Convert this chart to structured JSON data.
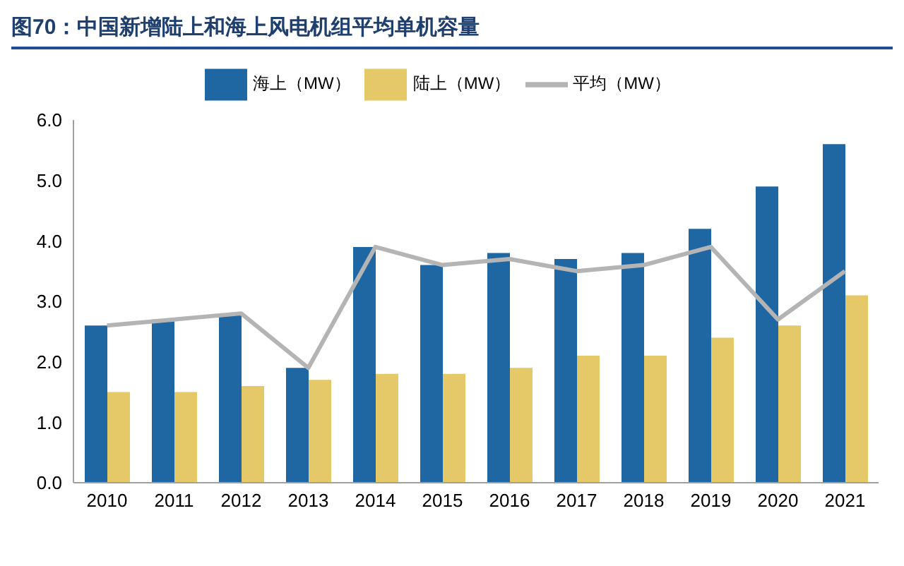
{
  "chart_data": {
    "type": "bar",
    "title": "图70：中国新增陆上和海上风电机组平均单机容量",
    "categories": [
      "2010",
      "2011",
      "2012",
      "2013",
      "2014",
      "2015",
      "2016",
      "2017",
      "2018",
      "2019",
      "2020",
      "2021"
    ],
    "series": [
      {
        "name": "海上（MW）",
        "color": "#1f67a3",
        "values": [
          2.6,
          2.7,
          2.8,
          1.9,
          3.9,
          3.6,
          3.8,
          3.7,
          3.8,
          4.2,
          4.9,
          5.6
        ]
      },
      {
        "name": "陆上（MW）",
        "color": "#e5c867",
        "values": [
          1.5,
          1.5,
          1.6,
          1.7,
          1.8,
          1.8,
          1.9,
          2.1,
          2.1,
          2.4,
          2.6,
          3.1
        ]
      },
      {
        "name": "平均（MW）",
        "type": "line",
        "color": "#b4b4b4",
        "values": [
          2.6,
          2.7,
          2.8,
          1.9,
          3.9,
          3.6,
          3.7,
          3.5,
          3.6,
          3.9,
          2.7,
          3.5
        ]
      }
    ],
    "ylim": [
      0,
      6
    ],
    "yticks": [
      {
        "value": 0,
        "label": "0.0"
      },
      {
        "value": 1,
        "label": "1.0"
      },
      {
        "value": 2,
        "label": "2.0"
      },
      {
        "value": 3,
        "label": "3.0"
      },
      {
        "value": 4,
        "label": "4.0"
      },
      {
        "value": 5,
        "label": "5.0"
      },
      {
        "value": 6,
        "label": "6.0"
      }
    ],
    "grid": false,
    "legend": "top",
    "marker": "none"
  }
}
